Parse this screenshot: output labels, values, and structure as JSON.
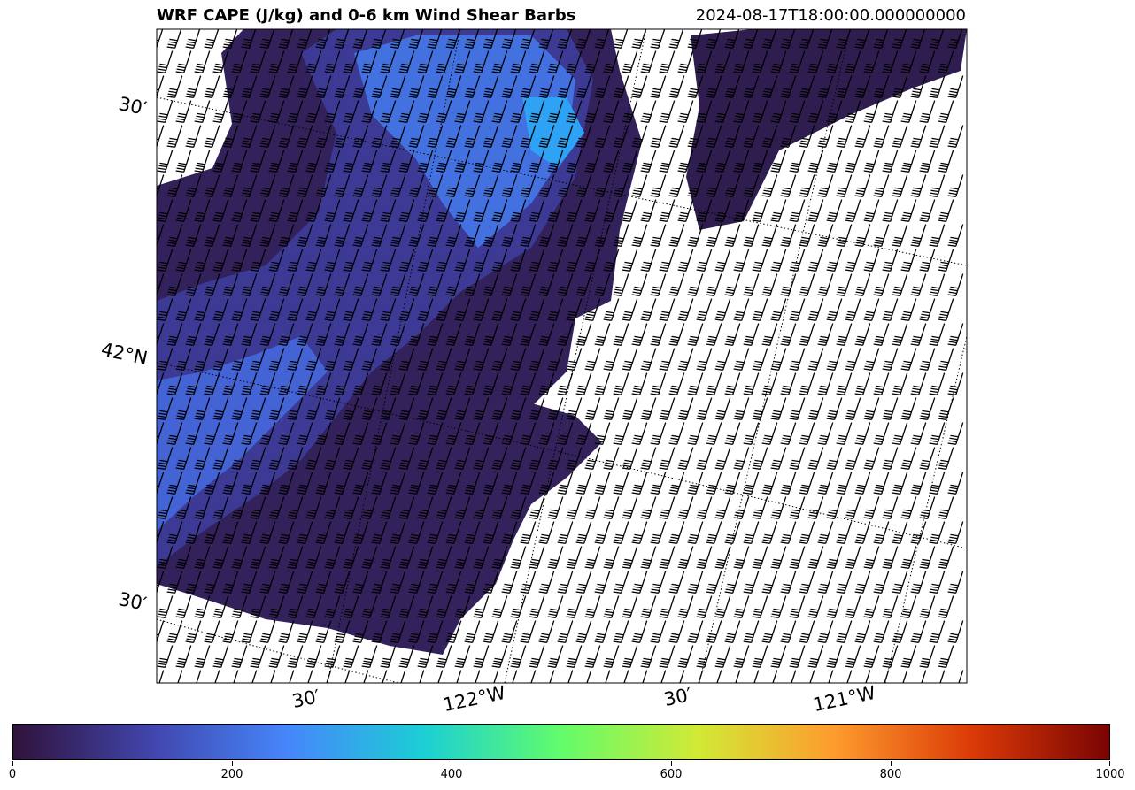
{
  "figure": {
    "title": "WRF CAPE (J/kg) and 0-6 km Wind Shear Barbs",
    "timestamp": "2024-08-17T18:00:00.000000000"
  },
  "map": {
    "lat_labels": [
      "30′",
      "42°N",
      "30′"
    ],
    "lon_labels": [
      "30′",
      "122°W",
      "30′",
      "121°W"
    ],
    "field": "CAPE",
    "overlay": "0-6 km wind shear barbs",
    "gridlines": "dotted"
  },
  "colorbar": {
    "colormap": "turbo",
    "min": 0,
    "max": 1000,
    "ticks": [
      "0",
      "200",
      "400",
      "600",
      "800",
      "1000"
    ],
    "tick_values": [
      0,
      200,
      400,
      600,
      800,
      1000
    ],
    "colors": [
      "#30123b",
      "#4145ab",
      "#4686fb",
      "#1bcfd4",
      "#62fc6b",
      "#d2e935",
      "#fe9b2d",
      "#db3a07",
      "#7a0403"
    ]
  }
}
